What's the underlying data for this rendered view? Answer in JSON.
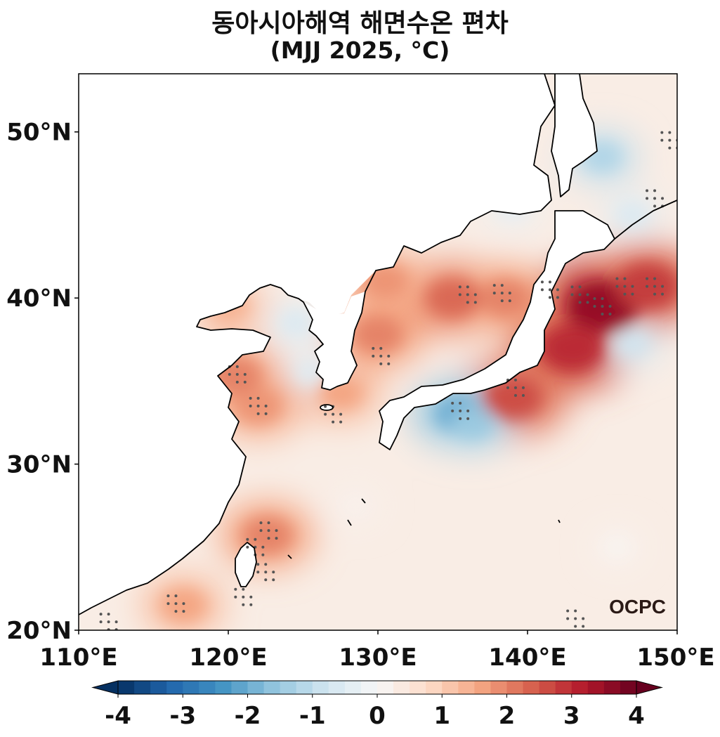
{
  "title": "동아시아해역 해면수온 편차",
  "subtitle": "(MJJ 2025, °C)",
  "watermark": "OCPC",
  "chart_data": {
    "type": "heatmap",
    "title": "동아시아해역 해면수온 편차",
    "subtitle": "(MJJ 2025, °C)",
    "variable_unit": "°C",
    "x_range": [
      110,
      150
    ],
    "y_range": [
      20,
      53.5
    ],
    "x_ticks": [
      110,
      120,
      130,
      140,
      150
    ],
    "x_tick_labels": [
      "110°E",
      "120°E",
      "130°E",
      "140°E",
      "150°E"
    ],
    "y_ticks": [
      20,
      30,
      40,
      50
    ],
    "y_tick_labels": [
      "20°N",
      "30°N",
      "40°N",
      "50°N"
    ],
    "colorbar": {
      "min": -4,
      "max": 4,
      "step": 0.25,
      "ticks": [
        -4,
        -3,
        -2,
        -1,
        0,
        1,
        2,
        3,
        4
      ],
      "tick_labels": [
        "-4",
        "-3",
        "-2",
        "-1",
        "0",
        "1",
        "2",
        "3",
        "4"
      ],
      "colormap": "RdBu_r",
      "extend": "both",
      "colors": {
        "low": "#053061",
        "mid": "#f7f7f7",
        "high": "#67001f"
      }
    },
    "background_anomaly": 0.3,
    "anomaly_features": [
      {
        "region": "Kuroshio extension east of Sanriku",
        "lon": 145,
        "lat": 39.5,
        "value": 3.5
      },
      {
        "region": "Off northeast Honshu",
        "lon": 143,
        "lat": 37,
        "value": 3.0
      },
      {
        "region": "Off Sanriku (east)",
        "lon": 148,
        "lat": 40.7,
        "value": 2.8
      },
      {
        "region": "Central East Sea",
        "lon": 135,
        "lat": 40,
        "value": 2.3
      },
      {
        "region": "Eastern East Sea",
        "lon": 138.5,
        "lat": 40,
        "value": 2.0
      },
      {
        "region": "Western East Sea",
        "lon": 130.5,
        "lat": 41,
        "value": 1.8
      },
      {
        "region": "Korea east coast",
        "lon": 130,
        "lat": 37.8,
        "value": 2.0
      },
      {
        "region": "South of Tokai",
        "lon": 139,
        "lat": 34,
        "value": 2.6
      },
      {
        "region": "Korea Strait / south coast",
        "lon": 127.5,
        "lat": 34.3,
        "value": 1.6
      },
      {
        "region": "Yellow Sea east (Jiangsu coast)",
        "lon": 122,
        "lat": 33.5,
        "value": 1.8
      },
      {
        "region": "Shandong south coast",
        "lon": 120.5,
        "lat": 35.3,
        "value": 2.0
      },
      {
        "region": "Taiwan Strait north",
        "lon": 122.6,
        "lat": 25.7,
        "value": 2.0
      },
      {
        "region": "South China coast",
        "lon": 117,
        "lat": 21.5,
        "value": 1.6
      },
      {
        "region": "South of Shikoku",
        "lon": 135.5,
        "lat": 33,
        "value": -2.0
      },
      {
        "region": "South of Kii Peninsula",
        "lon": 136.3,
        "lat": 32.5,
        "value": -1.5
      },
      {
        "region": "East of Sakhalin / Okhotsk",
        "lon": 145,
        "lat": 48.5,
        "value": -1.2
      },
      {
        "region": "Off Sakhalin east coast",
        "lon": 147,
        "lat": 45,
        "value": -0.6
      },
      {
        "region": "Northwest Pacific east of Honshu",
        "lon": 147,
        "lat": 37.3,
        "value": -0.8
      },
      {
        "region": "Korea Bay",
        "lon": 124.5,
        "lat": 38.5,
        "value": -0.6
      },
      {
        "region": "Off Korea west coast",
        "lon": 125.5,
        "lat": 35.5,
        "value": -0.5
      },
      {
        "region": "Tatar Strait / north Japan Sea",
        "lon": 139,
        "lat": 45.5,
        "value": -0.4
      },
      {
        "region": "Bohai coast",
        "lon": 120,
        "lat": 39.5,
        "value": 1.4
      },
      {
        "region": "Ryukyu chain",
        "lon": 128.5,
        "lat": 27.5,
        "value": 0.2
      },
      {
        "region": "Subtropical Pacific SE",
        "lon": 146,
        "lat": 25,
        "value": 0.1
      }
    ],
    "significance_stipple_centers": [
      [
        143.5,
        40.2
      ],
      [
        145,
        39.5
      ],
      [
        146.5,
        40.7
      ],
      [
        148.5,
        40.7
      ],
      [
        141.5,
        40.5
      ],
      [
        136,
        40.2
      ],
      [
        138.3,
        40.3
      ],
      [
        130.2,
        36.5
      ],
      [
        120.6,
        35.4
      ],
      [
        122,
        33.5
      ],
      [
        127,
        33
      ],
      [
        122.7,
        26
      ],
      [
        121,
        22
      ],
      [
        116.5,
        21.6
      ],
      [
        112,
        20.5
      ],
      [
        149.5,
        49.5
      ],
      [
        148.5,
        46
      ],
      [
        143.2,
        20.7
      ],
      [
        135.5,
        33.2
      ],
      [
        139.2,
        34.6
      ],
      [
        121.8,
        25
      ],
      [
        122.5,
        23.5
      ]
    ],
    "coastline": "East Asia: China, Korean Peninsula, Japan, Sakhalin, Taiwan",
    "grid": false,
    "legend": "horizontal colorbar below the map"
  }
}
